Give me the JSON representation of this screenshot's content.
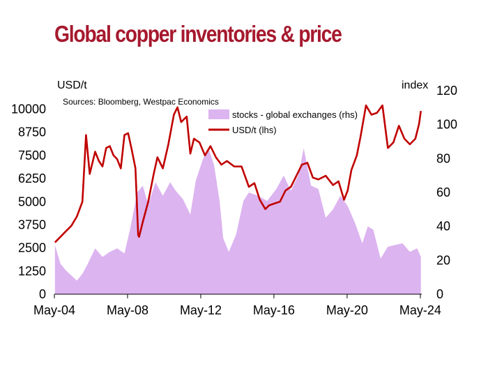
{
  "chart_data": {
    "type": "bar+line",
    "title": "Global copper inventories & price",
    "source": "Sources: Bloomberg, Westpac Economics",
    "y_left_label": "USD/t",
    "y_right_label": "index",
    "y_left_ticks": [
      "0",
      "1250",
      "2500",
      "3750",
      "5000",
      "6250",
      "7500",
      "8750",
      "10000"
    ],
    "y_right_ticks": [
      "0",
      "20",
      "40",
      "60",
      "80",
      "100",
      "120"
    ],
    "y_left_range": [
      0,
      11000
    ],
    "y_right_range": [
      0,
      120
    ],
    "x_ticks": [
      "May-04",
      "May-08",
      "May-12",
      "May-16",
      "May-20",
      "May-24"
    ],
    "x_tick_years": [
      2004.37,
      2008.37,
      2012.37,
      2016.37,
      2020.37,
      2024.37
    ],
    "x_range": [
      2004.37,
      2024.45
    ],
    "colors": {
      "title": "#a6192e",
      "price": "#c00000",
      "stocks": "#dcb4f0"
    },
    "series": [
      {
        "name": "stocks - global exchanges (rhs)",
        "type": "area",
        "axis": "right",
        "x": [
          2004.4,
          2004.7,
          2005.0,
          2005.3,
          2005.6,
          2005.9,
          2006.2,
          2006.6,
          2007.0,
          2007.4,
          2007.8,
          2008.2,
          2008.5,
          2008.9,
          2009.2,
          2009.5,
          2009.9,
          2010.3,
          2010.7,
          2011.0,
          2011.4,
          2011.8,
          2012.1,
          2012.5,
          2012.8,
          2013.1,
          2013.4,
          2013.6,
          2013.9,
          2014.3,
          2014.7,
          2015.0,
          2015.5,
          2016.0,
          2016.5,
          2016.9,
          2017.3,
          2017.7,
          2018.0,
          2018.4,
          2018.8,
          2019.2,
          2019.6,
          2020.0,
          2020.4,
          2020.8,
          2021.2,
          2021.5,
          2021.8,
          2022.2,
          2022.6,
          2023.0,
          2023.4,
          2023.8,
          2024.2,
          2024.4
        ],
        "values": [
          29,
          18,
          14,
          11,
          8,
          12,
          18,
          27,
          22,
          25,
          27,
          24,
          38,
          60,
          64,
          53,
          66,
          58,
          66,
          61,
          56,
          47,
          67,
          80,
          86,
          76,
          55,
          33,
          25,
          35,
          55,
          60,
          58,
          55,
          62,
          70,
          61,
          70,
          86,
          64,
          62,
          45,
          50,
          58,
          52,
          42,
          30,
          40,
          38,
          21,
          28,
          29,
          30,
          25,
          27,
          22
        ]
      },
      {
        "name": "USD/t (lhs)",
        "type": "line",
        "axis": "left",
        "x": [
          2004.4,
          2004.7,
          2005.0,
          2005.3,
          2005.6,
          2005.9,
          2006.1,
          2006.3,
          2006.6,
          2006.8,
          2007.0,
          2007.2,
          2007.4,
          2007.6,
          2007.8,
          2008.0,
          2008.2,
          2008.4,
          2008.6,
          2008.8,
          2008.95,
          2009.0,
          2009.2,
          2009.5,
          2009.8,
          2010.0,
          2010.3,
          2010.6,
          2010.9,
          2011.1,
          2011.3,
          2011.6,
          2011.8,
          2012.0,
          2012.3,
          2012.6,
          2012.9,
          2013.2,
          2013.5,
          2013.8,
          2014.2,
          2014.6,
          2015.0,
          2015.3,
          2015.6,
          2015.9,
          2016.1,
          2016.4,
          2016.7,
          2017.0,
          2017.3,
          2017.6,
          2017.9,
          2018.2,
          2018.5,
          2018.8,
          2019.2,
          2019.6,
          2019.9,
          2020.2,
          2020.4,
          2020.6,
          2020.9,
          2021.1,
          2021.4,
          2021.7,
          2022.0,
          2022.3,
          2022.6,
          2022.9,
          2023.2,
          2023.5,
          2023.8,
          2024.1,
          2024.3,
          2024.4
        ],
        "values": [
          2800,
          3100,
          3400,
          3700,
          4200,
          5000,
          8600,
          6500,
          7700,
          7200,
          6900,
          7900,
          8000,
          7500,
          7300,
          6800,
          8600,
          8700,
          7800,
          6800,
          3200,
          3100,
          3900,
          5000,
          6500,
          7400,
          6800,
          8100,
          9700,
          10100,
          9300,
          9600,
          7600,
          8400,
          8200,
          7500,
          8000,
          7400,
          7000,
          7200,
          6900,
          6900,
          5800,
          6000,
          5100,
          4600,
          4800,
          4900,
          5000,
          5600,
          5800,
          6400,
          7000,
          7100,
          6300,
          6200,
          6400,
          5900,
          6100,
          5100,
          5600,
          6700,
          7500,
          8500,
          10200,
          9700,
          9800,
          10200,
          7900,
          8200,
          9100,
          8400,
          8100,
          8400,
          9200,
          9900
        ]
      }
    ],
    "legend_position": "top-center",
    "grid": false
  }
}
